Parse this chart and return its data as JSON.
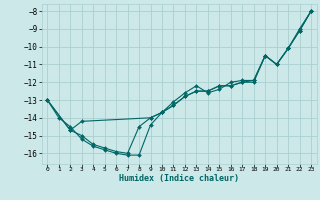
{
  "xlabel": "Humidex (Indice chaleur)",
  "background_color": "#cce8e8",
  "grid_color": "#aacfcf",
  "line_color": "#006666",
  "xlim": [
    -0.5,
    23.5
  ],
  "ylim": [
    -16.6,
    -7.6
  ],
  "yticks": [
    -8,
    -9,
    -10,
    -11,
    -12,
    -13,
    -14,
    -15,
    -16
  ],
  "xticks": [
    0,
    1,
    2,
    3,
    4,
    5,
    6,
    7,
    8,
    9,
    10,
    11,
    12,
    13,
    14,
    15,
    16,
    17,
    18,
    19,
    20,
    21,
    22,
    23
  ],
  "series": [
    {
      "x": [
        0,
        1,
        2,
        3,
        4,
        5,
        6,
        7,
        8,
        9,
        10,
        11,
        12,
        13,
        14,
        15,
        16,
        17,
        18,
        19,
        20,
        21,
        22,
        23
      ],
      "y": [
        -13.0,
        -14.0,
        -14.5,
        -15.2,
        -15.6,
        -15.8,
        -16.0,
        -16.1,
        -16.1,
        -14.4,
        -13.7,
        -13.3,
        -12.8,
        -12.5,
        -12.5,
        -12.2,
        -12.2,
        -12.0,
        -12.0,
        -10.5,
        -11.0,
        -10.1,
        -9.1,
        -8.0
      ]
    },
    {
      "x": [
        0,
        2,
        3,
        4,
        5,
        6,
        7,
        8,
        9,
        10,
        11,
        12,
        13,
        14,
        15,
        16,
        17,
        18,
        19,
        20,
        21,
        22,
        23
      ],
      "y": [
        -13.0,
        -14.7,
        -15.0,
        -15.5,
        -15.7,
        -15.9,
        -16.0,
        -14.5,
        -14.0,
        -13.7,
        -13.1,
        -12.6,
        -12.2,
        -12.6,
        -12.4,
        -12.0,
        -11.9,
        -11.9,
        -10.5,
        -11.0,
        -10.1,
        -9.0,
        -8.0
      ]
    },
    {
      "x": [
        0,
        2,
        3,
        9,
        10,
        11,
        12,
        13,
        14,
        15,
        16,
        17,
        18,
        19,
        20,
        21,
        22,
        23
      ],
      "y": [
        -13.0,
        -14.7,
        -14.2,
        -14.0,
        -13.7,
        -13.3,
        -12.8,
        -12.5,
        -12.5,
        -12.2,
        -12.2,
        -12.0,
        -11.9,
        -10.5,
        -11.0,
        -10.1,
        -9.1,
        -8.0
      ]
    }
  ]
}
